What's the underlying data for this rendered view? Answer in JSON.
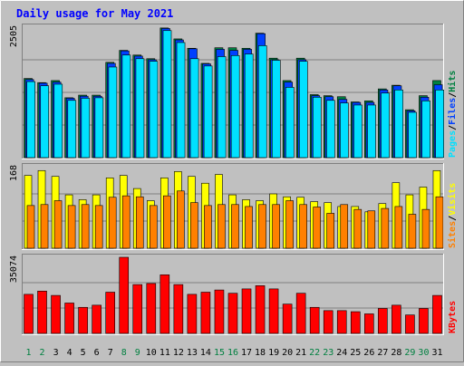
{
  "chart_data": {
    "type": "bar",
    "title": "Daily usage for May 2021",
    "categories": [
      "1",
      "2",
      "3",
      "4",
      "5",
      "6",
      "7",
      "8",
      "9",
      "10",
      "11",
      "12",
      "13",
      "14",
      "15",
      "16",
      "17",
      "18",
      "19",
      "20",
      "21",
      "22",
      "23",
      "24",
      "25",
      "26",
      "27",
      "28",
      "29",
      "30",
      "31"
    ],
    "weekend_days": [
      "1",
      "2",
      "8",
      "9",
      "15",
      "16",
      "22",
      "23",
      "29",
      "30"
    ],
    "colors": {
      "hits": "#008040",
      "files": "#0040ff",
      "pages": "#00e0ff",
      "visits": "#ffff00",
      "sites": "#ff8000",
      "kbytes": "#ff0000",
      "title": "#0000ff",
      "weekday_label": "#000000",
      "weekend_label": "#008040",
      "gridline": "#808080",
      "plot_bg": "#c0c0c0"
    },
    "panels": [
      {
        "id": "hits-files-pages",
        "max_label": "2505",
        "ymax": 2505,
        "legend": [
          "Pages",
          "/",
          "Files",
          "/",
          "Hits"
        ],
        "legend_colors": [
          "#00e0ff",
          "#000000",
          "#0040ff",
          "#000000",
          "#008040"
        ],
        "series": [
          {
            "key": "hits",
            "name": "Hits",
            "values": [
              1520,
              1440,
              1480,
              1150,
              1200,
              1200,
              1830,
              2060,
              1970,
              1900,
              2490,
              2280,
              2100,
              1810,
              2110,
              2110,
              2100,
              2390,
              1910,
              1480,
              1910,
              1210,
              1190,
              1170,
              1070,
              1090,
              1320,
              1390,
              920,
              1190,
              1480
            ]
          },
          {
            "key": "files",
            "name": "Files",
            "values": [
              1500,
              1430,
              1450,
              1140,
              1180,
              1180,
              1810,
              2050,
              1950,
              1880,
              2480,
              2260,
              2090,
              1800,
              2080,
              2060,
              2080,
              2380,
              1880,
              1450,
              1880,
              1190,
              1170,
              1120,
              1060,
              1060,
              1300,
              1380,
              900,
              1160,
              1400
            ]
          },
          {
            "key": "pages",
            "name": "Pages",
            "values": [
              1460,
              1380,
              1410,
              1100,
              1140,
              1150,
              1740,
              1970,
              1900,
              1850,
              2440,
              2210,
              1900,
              1760,
              1940,
              1960,
              1990,
              2150,
              1870,
              1350,
              1850,
              1160,
              1100,
              1050,
              1010,
              1010,
              1240,
              1300,
              870,
              1090,
              1300
            ]
          }
        ]
      },
      {
        "id": "visits-sites",
        "max_label": "168",
        "ymax": 168,
        "legend": [
          "Sites",
          "/",
          "Visits"
        ],
        "legend_colors": [
          "#ff8000",
          "#000000",
          "#ffff00"
        ],
        "series": [
          {
            "key": "visits",
            "name": "Visits",
            "values": [
              150,
              160,
              148,
              110,
              100,
              110,
              145,
              150,
              123,
              98,
              145,
              158,
              148,
              134,
              152,
              110,
              100,
              98,
              112,
              106,
              105,
              96,
              94,
              86,
              86,
              75,
              92,
              135,
              110,
              126,
              160
            ]
          },
          {
            "key": "sites",
            "name": "Sites",
            "values": [
              88,
              90,
              98,
              88,
              90,
              88,
              105,
              108,
              106,
              88,
              108,
              118,
              94,
              88,
              90,
              90,
              86,
              90,
              90,
              98,
              90,
              85,
              72,
              90,
              80,
              77,
              82,
              86,
              70,
              80,
              106
            ]
          }
        ]
      },
      {
        "id": "kbytes",
        "max_label": "35074",
        "ymax": 35074,
        "legend": [
          "KBytes"
        ],
        "legend_colors": [
          "#ff0000"
        ],
        "series": [
          {
            "key": "kbytes",
            "name": "KBytes",
            "values": [
              18000,
              19500,
              17500,
              14000,
              12000,
              13000,
              19000,
              35074,
              22500,
              23000,
              27000,
              22500,
              18000,
              19000,
              20000,
              18500,
              20500,
              22000,
              20500,
              13500,
              18500,
              12000,
              10500,
              10500,
              10000,
              9000,
              11500,
              13000,
              8500,
              11500,
              17500
            ]
          }
        ]
      }
    ]
  }
}
